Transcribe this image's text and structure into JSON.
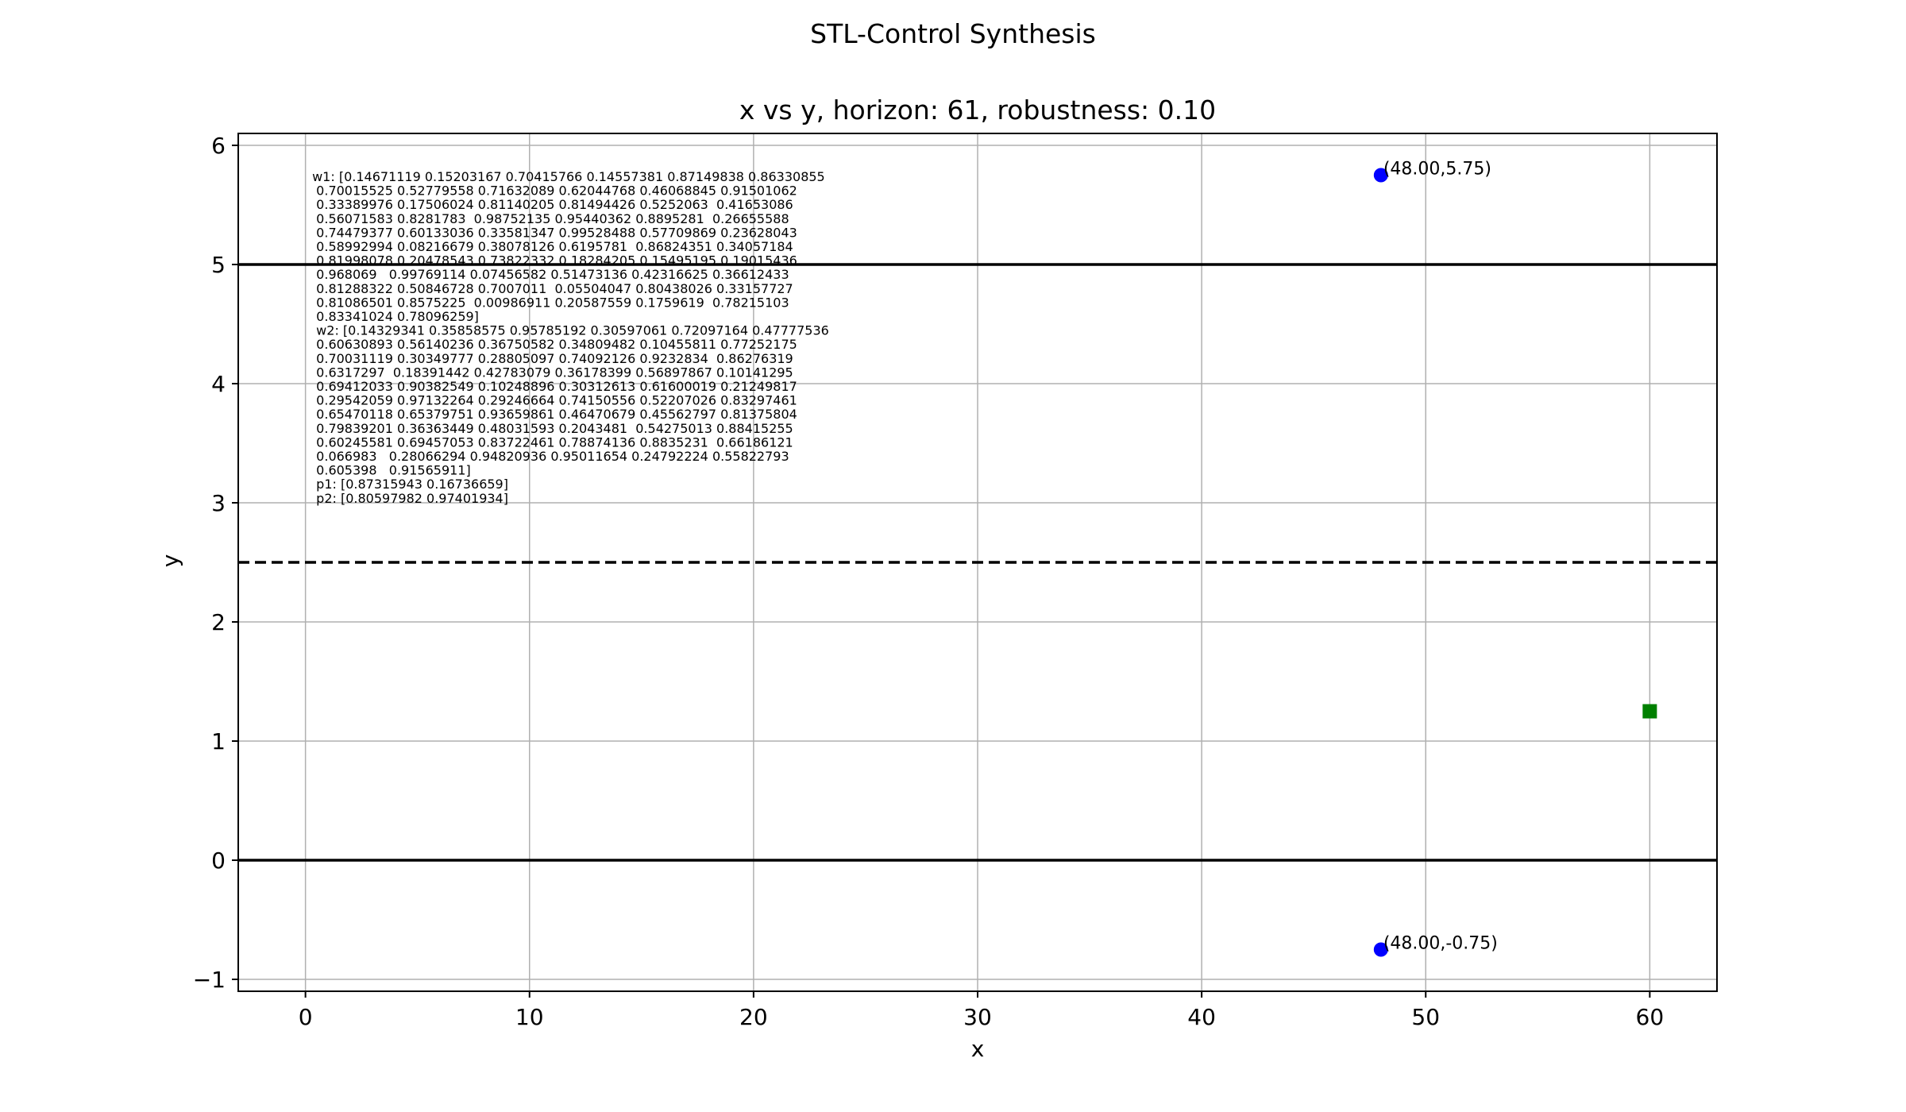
{
  "figure": {
    "suptitle": "STL-Control Synthesis"
  },
  "chart_data": {
    "type": "scatter",
    "title": "x vs y, horizon: 61, robustness: 0.10",
    "xlabel": "x",
    "ylabel": "y",
    "xlim": [
      -3,
      63
    ],
    "ylim": [
      -1.1,
      6.1
    ],
    "xticks": [
      0,
      10,
      20,
      30,
      40,
      50,
      60
    ],
    "yticks": [
      -1,
      0,
      1,
      2,
      3,
      4,
      5,
      6
    ],
    "ytick_labels": [
      "−1",
      "0",
      "1",
      "2",
      "3",
      "4",
      "5",
      "6"
    ],
    "grid": true,
    "hlines": [
      {
        "y": 5,
        "style": "solid",
        "color": "#000000"
      },
      {
        "y": 0,
        "style": "solid",
        "color": "#000000"
      },
      {
        "y": 2.5,
        "style": "dashed",
        "color": "#000000"
      }
    ],
    "points": [
      {
        "x": 48,
        "y": 5.75,
        "marker": "circle",
        "color": "#0000ff",
        "label": "(48.00,5.75)"
      },
      {
        "x": 48,
        "y": -0.75,
        "marker": "circle",
        "color": "#0000ff",
        "label": "(48.00,-0.75)"
      },
      {
        "x": 60,
        "y": 1.25,
        "marker": "square",
        "color": "#008000"
      }
    ],
    "annotation_lines": [
      "w1: [0.14671119 0.15203167 0.70415766 0.14557381 0.87149838 0.86330855",
      " 0.70015525 0.52779558 0.71632089 0.62044768 0.46068845 0.91501062",
      " 0.33389976 0.17506024 0.81140205 0.81494426 0.5252063  0.41653086",
      " 0.56071583 0.8281783  0.98752135 0.95440362 0.8895281  0.26655588",
      " 0.74479377 0.60133036 0.33581347 0.99528488 0.57709869 0.23628043",
      " 0.58992994 0.08216679 0.38078126 0.6195781  0.86824351 0.34057184",
      " 0.81998078 0.20478543 0.73822332 0.18284205 0.15495195 0.19015436",
      " 0.968069   0.99769114 0.07456582 0.51473136 0.42316625 0.36612433",
      " 0.81288322 0.50846728 0.7007011  0.05504047 0.80438026 0.33157727",
      " 0.81086501 0.8575225  0.00986911 0.20587559 0.1759619  0.78215103",
      " 0.83341024 0.78096259]",
      " w2: [0.14329341 0.35858575 0.95785192 0.30597061 0.72097164 0.47777536",
      " 0.60630893 0.56140236 0.36750582 0.34809482 0.10455811 0.77252175",
      " 0.70031119 0.30349777 0.28805097 0.74092126 0.9232834  0.86276319",
      " 0.6317297  0.18391442 0.42783079 0.36178399 0.56897867 0.10141295",
      " 0.69412033 0.90382549 0.10248896 0.30312613 0.61600019 0.21249817",
      " 0.29542059 0.97132264 0.29246664 0.74150556 0.52207026 0.83297461",
      " 0.65470118 0.65379751 0.93659861 0.46470679 0.45562797 0.81375804",
      " 0.79839201 0.36363449 0.48031593 0.2043481  0.54275013 0.88415255",
      " 0.60245581 0.69457053 0.83722461 0.78874136 0.8835231  0.66186121",
      " 0.066983   0.28066294 0.94820936 0.95011654 0.24792224 0.55822793",
      " 0.605398   0.91565911]",
      " p1: [0.87315943 0.16736659]",
      " p2: [0.80597982 0.97401934]"
    ]
  }
}
